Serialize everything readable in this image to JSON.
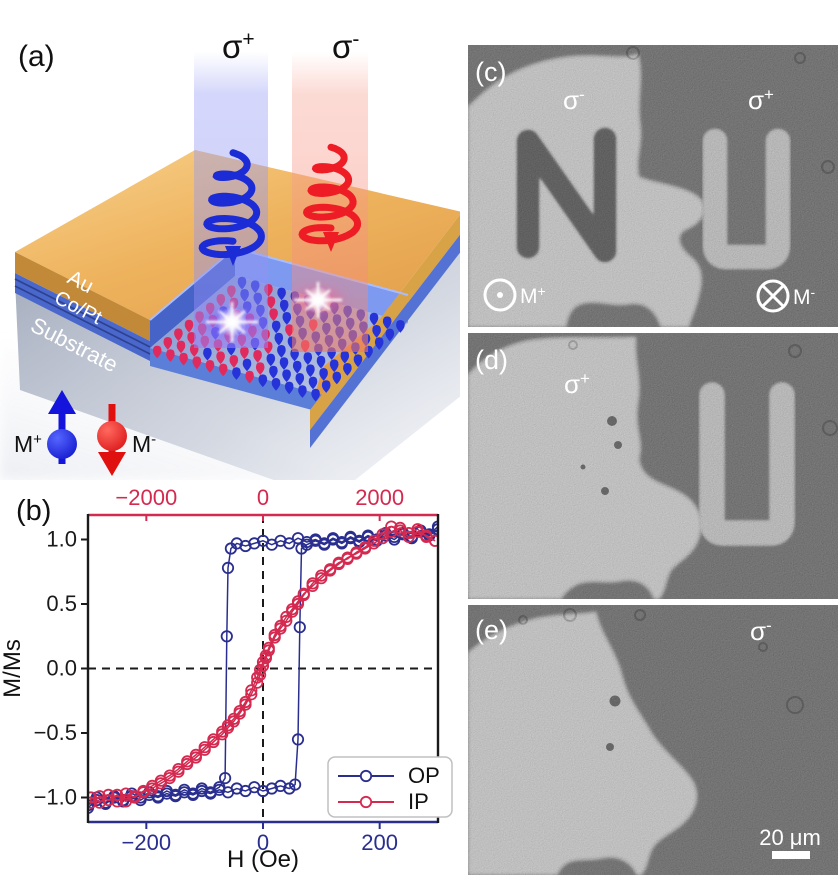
{
  "panel_a": {
    "label": "(a)",
    "beams": [
      {
        "name": "sigma-plus",
        "base": "σ",
        "sup": "+"
      },
      {
        "name": "sigma-minus",
        "base": "σ",
        "sup": "-"
      }
    ],
    "layer_labels": [
      "Au",
      "Co/Pt",
      "Substrate"
    ],
    "moment_legend": [
      {
        "base": "M",
        "sup": "+",
        "color": "#1515dc"
      },
      {
        "base": "M",
        "sup": "-",
        "color": "#e01010"
      }
    ],
    "moment_colors": {
      "R": "#e02a5e",
      "B": "#2633d8"
    },
    "moment_pattern": [
      "BBRBBBBBBBBBB",
      "RBBRBBBBBBBBB",
      "RRBBRBBRBBBBB",
      "RBRRBBRBBBBBB",
      "RRRBRRBBRBBBB",
      "RRBRRBRBBBBBB",
      "RRRRBRRBBBBBB",
      "RRRBRRBRBBBBB",
      "RRRRRRBRBBBBB"
    ]
  },
  "panel_b": {
    "label": "(b)"
  },
  "chart_data": {
    "type": "scatter",
    "marker": "open-circle",
    "xlabel": "H (Oe)",
    "ylabel": "M/Ms",
    "axes": {
      "bottom": {
        "range": [
          -300,
          300
        ],
        "tick_values": [
          -200,
          0,
          200
        ],
        "tick_labels": [
          "−200",
          "0",
          "200"
        ],
        "color": "#2a2f8f"
      },
      "top": {
        "range": [
          -3000,
          3000
        ],
        "tick_values": [
          -2000,
          0,
          2000
        ],
        "tick_labels": [
          "−2000",
          "0",
          "2000"
        ],
        "color": "#d42a50"
      },
      "left": {
        "range": [
          -1.19,
          1.19
        ],
        "tick_values": [
          1.0,
          0.5,
          0.0,
          -0.5,
          -1.0
        ],
        "tick_labels": [
          "1.0",
          "0.5",
          "0.0",
          "−0.5",
          "−1.0"
        ],
        "color": "#1a1a1a"
      }
    },
    "zero_guides": true,
    "legend": {
      "position": "lower-right",
      "entries": [
        "OP",
        "IP"
      ]
    },
    "series": [
      {
        "name": "OP",
        "axis": "bottom",
        "color": "#2a2f8f",
        "points": [
          [
            300,
            1.08
          ],
          [
            285,
            1.03
          ],
          [
            270,
            1.06
          ],
          [
            255,
            1.01
          ],
          [
            240,
            1.04
          ],
          [
            225,
            1.02
          ],
          [
            210,
            1.05
          ],
          [
            195,
            1.0
          ],
          [
            180,
            1.03
          ],
          [
            165,
            0.99
          ],
          [
            150,
            1.02
          ],
          [
            135,
            0.98
          ],
          [
            120,
            1.01
          ],
          [
            105,
            0.97
          ],
          [
            90,
            1.0
          ],
          [
            75,
            0.98
          ],
          [
            60,
            1.01
          ],
          [
            45,
            0.97
          ],
          [
            30,
            0.99
          ],
          [
            15,
            0.96
          ],
          [
            0,
            0.99
          ],
          [
            -15,
            0.97
          ],
          [
            -30,
            0.95
          ],
          [
            -45,
            0.97
          ],
          [
            -55,
            0.93
          ],
          [
            -60,
            0.78
          ],
          [
            -62,
            0.25
          ],
          [
            -65,
            -0.85
          ],
          [
            -75,
            -0.92
          ],
          [
            -90,
            -0.96
          ],
          [
            -105,
            -0.93
          ],
          [
            -120,
            -0.97
          ],
          [
            -135,
            -0.94
          ],
          [
            -150,
            -0.98
          ],
          [
            -165,
            -0.95
          ],
          [
            -180,
            -0.99
          ],
          [
            -195,
            -0.96
          ],
          [
            -210,
            -1.0
          ],
          [
            -225,
            -0.97
          ],
          [
            -240,
            -1.02
          ],
          [
            -255,
            -0.99
          ],
          [
            -270,
            -1.04
          ],
          [
            -285,
            -1.0
          ],
          [
            -300,
            -1.06
          ],
          [
            -300,
            -1.08
          ],
          [
            -285,
            -1.02
          ],
          [
            -270,
            -1.05
          ],
          [
            -255,
            -1.0
          ],
          [
            -240,
            -1.03
          ],
          [
            -225,
            -0.99
          ],
          [
            -210,
            -1.02
          ],
          [
            -195,
            -0.98
          ],
          [
            -180,
            -1.0
          ],
          [
            -165,
            -0.97
          ],
          [
            -150,
            -0.99
          ],
          [
            -135,
            -0.96
          ],
          [
            -120,
            -0.98
          ],
          [
            -105,
            -0.95
          ],
          [
            -90,
            -0.97
          ],
          [
            -75,
            -0.94
          ],
          [
            -60,
            -0.96
          ],
          [
            -45,
            -0.93
          ],
          [
            -30,
            -0.95
          ],
          [
            -15,
            -0.92
          ],
          [
            0,
            -0.95
          ],
          [
            15,
            -0.93
          ],
          [
            30,
            -0.91
          ],
          [
            45,
            -0.93
          ],
          [
            55,
            -0.9
          ],
          [
            60,
            -0.55
          ],
          [
            63,
            0.32
          ],
          [
            66,
            0.93
          ],
          [
            75,
            0.96
          ],
          [
            90,
            0.99
          ],
          [
            105,
            0.96
          ],
          [
            120,
            1.0
          ],
          [
            135,
            0.97
          ],
          [
            150,
            1.01
          ],
          [
            165,
            0.98
          ],
          [
            180,
            1.02
          ],
          [
            195,
            0.99
          ],
          [
            210,
            1.03
          ],
          [
            225,
            1.0
          ],
          [
            240,
            1.05
          ],
          [
            255,
            1.02
          ],
          [
            270,
            1.07
          ],
          [
            285,
            1.04
          ],
          [
            300,
            1.1
          ]
        ]
      },
      {
        "name": "IP",
        "axis": "top",
        "color": "#d42a50",
        "points": [
          [
            2950,
            0.99
          ],
          [
            2800,
            1.03
          ],
          [
            2650,
            1.06
          ],
          [
            2500,
            1.02
          ],
          [
            2350,
            1.07
          ],
          [
            2200,
            1.1
          ],
          [
            2050,
            1.04
          ],
          [
            1900,
            0.99
          ],
          [
            1750,
            0.94
          ],
          [
            1600,
            0.9
          ],
          [
            1450,
            0.85
          ],
          [
            1300,
            0.82
          ],
          [
            1150,
            0.77
          ],
          [
            1000,
            0.72
          ],
          [
            850,
            0.66
          ],
          [
            700,
            0.57
          ],
          [
            600,
            0.5
          ],
          [
            500,
            0.44
          ],
          [
            400,
            0.37
          ],
          [
            300,
            0.31
          ],
          [
            200,
            0.24
          ],
          [
            100,
            0.14
          ],
          [
            50,
            0.08
          ],
          [
            0,
            0.02
          ],
          [
            -50,
            -0.05
          ],
          [
            -100,
            -0.11
          ],
          [
            -200,
            -0.2
          ],
          [
            -300,
            -0.28
          ],
          [
            -400,
            -0.35
          ],
          [
            -500,
            -0.41
          ],
          [
            -600,
            -0.46
          ],
          [
            -700,
            -0.51
          ],
          [
            -850,
            -0.57
          ],
          [
            -1000,
            -0.63
          ],
          [
            -1150,
            -0.69
          ],
          [
            -1300,
            -0.74
          ],
          [
            -1450,
            -0.8
          ],
          [
            -1600,
            -0.85
          ],
          [
            -1750,
            -0.89
          ],
          [
            -1900,
            -0.93
          ],
          [
            -2050,
            -0.96
          ],
          [
            -2200,
            -0.99
          ],
          [
            -2350,
            -1.03
          ],
          [
            -2500,
            -0.98
          ],
          [
            -2650,
            -1.02
          ],
          [
            -2800,
            -0.99
          ],
          [
            -2950,
            -1.04
          ],
          [
            -2950,
            -1.0
          ],
          [
            -2800,
            -1.04
          ],
          [
            -2650,
            -0.98
          ],
          [
            -2500,
            -1.03
          ],
          [
            -2350,
            -0.97
          ],
          [
            -2200,
            -1.0
          ],
          [
            -2050,
            -0.95
          ],
          [
            -1900,
            -0.91
          ],
          [
            -1750,
            -0.87
          ],
          [
            -1600,
            -0.83
          ],
          [
            -1450,
            -0.78
          ],
          [
            -1300,
            -0.72
          ],
          [
            -1150,
            -0.67
          ],
          [
            -1000,
            -0.61
          ],
          [
            -850,
            -0.55
          ],
          [
            -700,
            -0.49
          ],
          [
            -600,
            -0.44
          ],
          [
            -500,
            -0.39
          ],
          [
            -400,
            -0.33
          ],
          [
            -300,
            -0.26
          ],
          [
            -200,
            -0.17
          ],
          [
            -100,
            -0.07
          ],
          [
            -50,
            -0.01
          ],
          [
            0,
            0.05
          ],
          [
            50,
            0.1
          ],
          [
            100,
            0.16
          ],
          [
            200,
            0.26
          ],
          [
            300,
            0.33
          ],
          [
            400,
            0.4
          ],
          [
            500,
            0.46
          ],
          [
            600,
            0.52
          ],
          [
            700,
            0.58
          ],
          [
            850,
            0.64
          ],
          [
            1000,
            0.7
          ],
          [
            1150,
            0.76
          ],
          [
            1300,
            0.81
          ],
          [
            1450,
            0.86
          ],
          [
            1600,
            0.89
          ],
          [
            1750,
            0.93
          ],
          [
            1900,
            0.97
          ],
          [
            2050,
            1.01
          ],
          [
            2200,
            1.06
          ],
          [
            2350,
            1.09
          ],
          [
            2500,
            1.05
          ],
          [
            2650,
            1.08
          ],
          [
            2800,
            1.02
          ],
          [
            2950,
            0.99
          ]
        ]
      }
    ]
  },
  "panel_c": {
    "label": "(c)",
    "region_labels": [
      {
        "base": "σ",
        "sup": "-"
      },
      {
        "base": "σ",
        "sup": "+"
      }
    ],
    "letters": [
      "N",
      "U"
    ],
    "markers": [
      {
        "base": "M",
        "sup": "+",
        "symbol": "circle-dot"
      },
      {
        "base": "M",
        "sup": "-",
        "symbol": "circle-cross"
      }
    ]
  },
  "panel_d": {
    "label": "(d)",
    "region_labels": [
      {
        "base": "σ",
        "sup": "+"
      }
    ],
    "letters": [
      "U"
    ]
  },
  "panel_e": {
    "label": "(e)",
    "region_labels": [
      {
        "base": "σ",
        "sup": "-"
      }
    ],
    "letters": [],
    "scale_bar": "20 μm"
  },
  "palette": {
    "microscopy_dark": "#5c5c5c",
    "microscopy_light": "#a9a9a9",
    "letter_dark": "#4e4e4e",
    "letter_light": "#9e9e9e",
    "beam_blue": "#8f8ff2",
    "beam_red": "#f58a7a",
    "gold": "#eeb35e"
  }
}
